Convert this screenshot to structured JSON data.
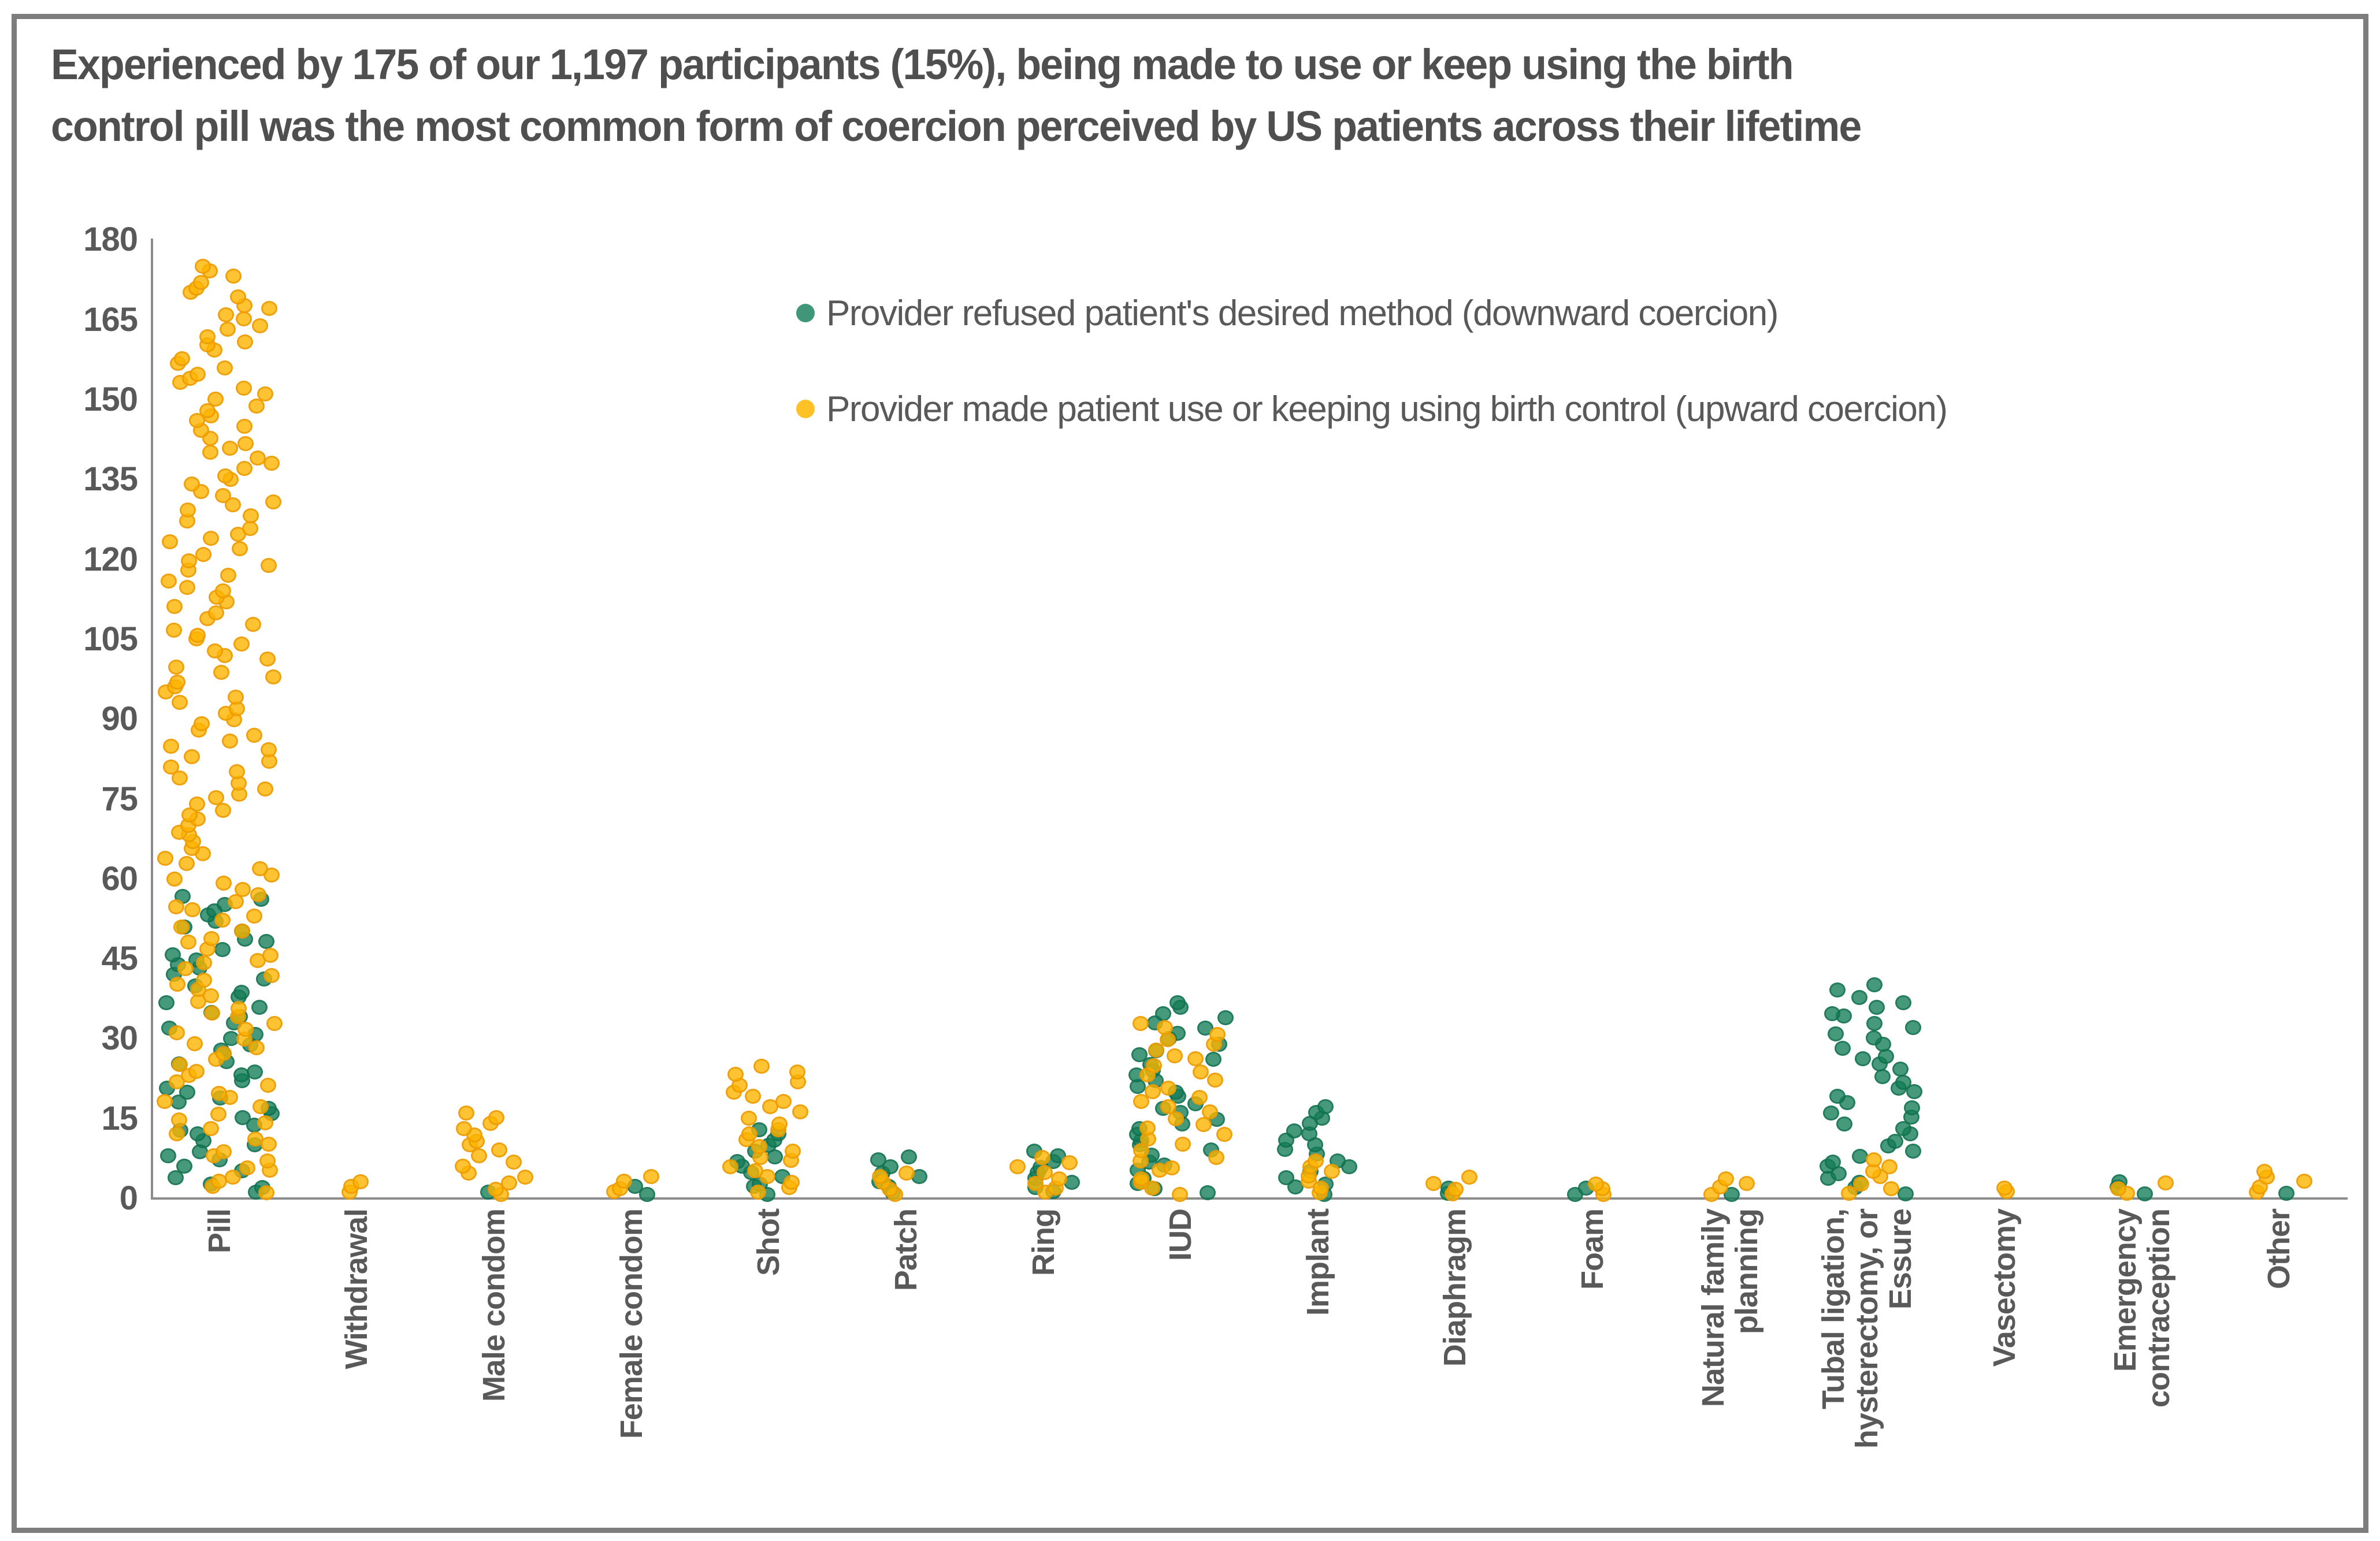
{
  "title": {
    "line1": "Experienced by 175 of our 1,197 participants (15%), being made to use or keep using the birth",
    "line2": "control pill was the most common form of coercion perceived by US patients across their lifetime"
  },
  "colors": {
    "downward_green": "#3F9679",
    "upward_yellow": "#FFC125",
    "text_gray": "#595959",
    "axis_gray": "#8C8C8C",
    "frame_gray": "#7D7D7D"
  },
  "chart_data": {
    "type": "scatter",
    "subtype": "stacked-jitter-strip-plot",
    "title": "Experienced by 175 of our 1,197 participants (15%), being made to use or keep using the birth control pill was the most common form of coercion perceived by US patients across their lifetime",
    "xlabel": "",
    "ylabel": "",
    "ylim": [
      0,
      180
    ],
    "yticks": [
      0,
      15,
      30,
      45,
      60,
      75,
      90,
      105,
      120,
      135,
      150,
      165,
      180
    ],
    "grid": false,
    "legend_position": "upper center, two rows",
    "point_semantics": "each dot = one participant reporting that form of coercion; dots stack upward one unit per participant with horizontal jitter",
    "categories": [
      "Pill",
      "Withdrawal",
      "Male condom",
      "Female condom",
      "Shot",
      "Patch",
      "Ring",
      "IUD",
      "Implant",
      "Diaphragm",
      "Foam",
      "Natural family\nplanning",
      "Tubal ligation,\nhysterectomy, or\nEssure",
      "Vasectomy",
      "Emergency\ncontraception",
      "Other"
    ],
    "series": [
      {
        "name": "Provider refused patient's desired method (downward coercion)",
        "color": "#3F9679",
        "values": [
          57,
          0,
          1,
          2,
          13,
          8,
          9,
          37,
          17,
          2,
          2,
          1,
          40,
          0,
          3,
          1
        ]
      },
      {
        "name": "Provider made patient use or keeping using birth control (upward coercion)",
        "color": "#FFC125",
        "values": [
          175,
          3,
          16,
          4,
          25,
          5,
          8,
          33,
          7,
          4,
          3,
          4,
          7,
          2,
          3,
          5
        ]
      }
    ]
  }
}
